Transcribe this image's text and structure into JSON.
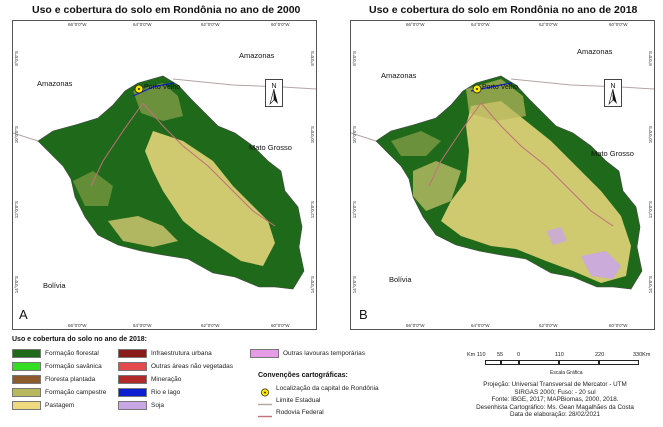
{
  "panels": {
    "a": {
      "title": "Uso e cobertura do solo em Rondônia no ano de 2000",
      "letter": "A"
    },
    "b": {
      "title": "Uso e cobertura do solo em Rondônia no ano de 2018",
      "letter": "B"
    }
  },
  "labels": {
    "amazonas": "Amazonas",
    "mato_grosso": "Mato Grosso",
    "bolivia": "Bolívia",
    "porto_velho": "Porto Velho",
    "north": "N"
  },
  "ticks": {
    "top": [
      "66°0'0\"W",
      "64°0'0\"W",
      "62°0'0\"W",
      "60°0'0\"W"
    ],
    "bottom": [
      "66°0'0\"W",
      "64°0'0\"W",
      "62°0'0\"W",
      "60°0'0\"W"
    ],
    "left": [
      "8°0'0\"S",
      "10°0'0\"S",
      "12°0'0\"S",
      "14°0'0\"S"
    ],
    "right": [
      "8°0'0\"S",
      "10°0'0\"S",
      "12°0'0\"S",
      "14°0'0\"S"
    ]
  },
  "legend": {
    "title": "Uso e cobertura do solo no ano de 2018:",
    "items": [
      {
        "label": "Formação florestal",
        "color": "#1f6a1a"
      },
      {
        "label": "Formação savânica",
        "color": "#33dd22"
      },
      {
        "label": "Floresta plantada",
        "color": "#8c5a2b"
      },
      {
        "label": "Formação campestre",
        "color": "#b8b85e"
      },
      {
        "label": "Pastagem",
        "color": "#efd97f"
      },
      {
        "label": "Infraestrutura urbana",
        "color": "#8a1b1b"
      },
      {
        "label": "Outras áreas não vegetadas",
        "color": "#e4494e"
      },
      {
        "label": "Mineração",
        "color": "#b02a2a"
      },
      {
        "label": "Rio e lago",
        "color": "#0b1fd1"
      },
      {
        "label": "Soja",
        "color": "#c9a7e6"
      },
      {
        "label": "Outras lavouras temporárias",
        "color": "#e59be6"
      }
    ]
  },
  "conventions": {
    "title": "Convenções cartográficas:",
    "capital": "Localização da capital de Rondônia",
    "state_border": "Limite Estadual",
    "federal_road": "Rodovia Federal"
  },
  "scale": {
    "labels": [
      "Km 110",
      "55",
      "0",
      "110",
      "220",
      "330Km"
    ],
    "caption": "Escala Gráfica"
  },
  "credits": [
    "Projeção: Universal Transversal de Mercator - UTM",
    "SIRGAS 2000; Fuso: - 20 sul",
    "Fonte: IBGE, 2017; MAPBiomas, 2000, 2018.",
    "Desenhista Cartográfico: Ms. Gean Magalhães da Costa",
    "Data de elaboração: 28/02/2021"
  ]
}
